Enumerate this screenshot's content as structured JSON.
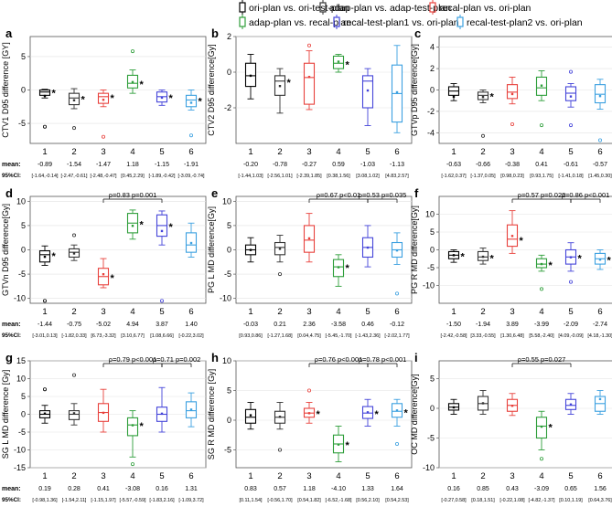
{
  "legend": {
    "placement": "top",
    "items": [
      {
        "label": "ori-plan vs. ori-test-plan",
        "color": "#000000"
      },
      {
        "label": "adap-plan vs. adap-test-plan",
        "color": "#333333"
      },
      {
        "label": "recal-plan vs. ori-plan",
        "color": "#e8413c"
      },
      {
        "label": "adap-plan vs. recal-plan",
        "color": "#2e9e3a"
      },
      {
        "label": "recal-test-plan1 vs. ori-plan",
        "color": "#4444d9"
      },
      {
        "label": "recal-test-plan2 vs. ori-plan",
        "color": "#3ba0e0"
      }
    ]
  },
  "row_labels": {
    "mean": "mean:",
    "ci": "95%CI:"
  },
  "chart_data": [
    {
      "type": "boxplot",
      "panel": "a",
      "ylabel": "CTV1 D95 difference [GY]",
      "ylim": [
        -8,
        8
      ],
      "yticks": [
        -5,
        0,
        5
      ],
      "grid": true,
      "categories": [
        "1",
        "2",
        "3",
        "4",
        "5",
        "6"
      ],
      "means": [
        "-0.89",
        "-1.54",
        "-1.47",
        "1.18",
        "-1.15",
        "-1.91"
      ],
      "ci": [
        "[-1.64,-0.14]",
        "[-2.47,-0.61]",
        "[-2.48,-0.47]",
        "[0.45,2.29]",
        "[-1.89,-0.42]",
        "[-3.09,-0.74]"
      ],
      "boxes": [
        {
          "q1": -0.8,
          "median": -0.3,
          "q3": 0,
          "wlo": -1.2,
          "whi": 0.1,
          "outliers": [
            -5.5
          ],
          "star": true
        },
        {
          "q1": -2.2,
          "median": -1.2,
          "q3": -0.5,
          "wlo": -2.8,
          "whi": 0.2,
          "outliers": [
            -5.7
          ],
          "star": true
        },
        {
          "q1": -2,
          "median": -1,
          "q3": -0.5,
          "wlo": -2.5,
          "whi": 0,
          "outliers": [
            -7
          ],
          "star": true
        },
        {
          "q1": 0.3,
          "median": 1,
          "q3": 2.2,
          "wlo": -0.5,
          "whi": 3,
          "outliers": [
            5.8
          ],
          "star": true
        },
        {
          "q1": -1.8,
          "median": -1,
          "q3": -0.3,
          "wlo": -2.3,
          "whi": 0,
          "outliers": [],
          "star": true
        },
        {
          "q1": -2.5,
          "median": -1.5,
          "q3": -0.8,
          "wlo": -3,
          "whi": 0,
          "outliers": [
            -6.8
          ],
          "star": true
        }
      ],
      "brackets": []
    },
    {
      "type": "boxplot",
      "panel": "b",
      "ylabel": "CTV2 D95 difference[Gy]",
      "ylim": [
        -4,
        2
      ],
      "yticks": [
        -2,
        0,
        2
      ],
      "grid": true,
      "categories": [
        "1",
        "2",
        "3",
        "4",
        "5",
        "6"
      ],
      "means": [
        "-0.20",
        "-0.78",
        "-0.27",
        "0.59",
        "-1.03",
        "-1.13"
      ],
      "ci": [
        "[-1.44,1.03]",
        "[-2.56,1.01]",
        "[-2.39,1.85]",
        "[0.38,1.56]",
        "[3.08,1.02]",
        "[4.83,2.57]"
      ],
      "boxes": [
        {
          "q1": -0.8,
          "median": -0.2,
          "q3": 0.5,
          "wlo": -1.5,
          "whi": 1,
          "outliers": [],
          "star": false
        },
        {
          "q1": -1.3,
          "median": -0.5,
          "q3": -0.2,
          "wlo": -2.3,
          "whi": 0.2,
          "outliers": [],
          "star": true
        },
        {
          "q1": -1.8,
          "median": -0.3,
          "q3": 0.5,
          "wlo": -2.1,
          "whi": 1.2,
          "outliers": [
            1.5
          ],
          "star": false
        },
        {
          "q1": 0.2,
          "median": 0.5,
          "q3": 0.9,
          "wlo": 0,
          "whi": 1,
          "outliers": [],
          "star": true
        },
        {
          "q1": -2,
          "median": -0.5,
          "q3": -0.2,
          "wlo": -3,
          "whi": 0.2,
          "outliers": [],
          "star": false
        },
        {
          "q1": -2.8,
          "median": -1.2,
          "q3": 0.4,
          "wlo": -3.4,
          "whi": 1.5,
          "outliers": [],
          "star": false
        }
      ],
      "brackets": []
    },
    {
      "type": "boxplot",
      "panel": "c",
      "ylabel": "GTVp D95 difference[Gy]",
      "ylim": [
        -5,
        5
      ],
      "yticks": [
        -4,
        -2,
        0,
        2,
        4
      ],
      "grid": true,
      "categories": [
        "1",
        "2",
        "3",
        "4",
        "5",
        "6"
      ],
      "means": [
        "-0.63",
        "-0.66",
        "-0.38",
        "0.41",
        "-0.61",
        "-0.57"
      ],
      "ci": [
        "[-1.62,0.37]",
        "[-1.37,0.05]",
        "[0.98,0.23]",
        "[0.93,1.75]",
        "[-1.41,0.18]",
        "[1.45,0.30]"
      ],
      "boxes": [
        {
          "q1": -0.5,
          "median": -0.1,
          "q3": 0.3,
          "wlo": -1,
          "whi": 0.6,
          "outliers": [],
          "star": false
        },
        {
          "q1": -0.9,
          "median": -0.5,
          "q3": -0.2,
          "wlo": -1.2,
          "whi": 0,
          "outliers": [
            -4.3
          ],
          "star": true
        },
        {
          "q1": -0.8,
          "median": -0.2,
          "q3": 0.5,
          "wlo": -1.3,
          "whi": 1.2,
          "outliers": [
            -3.2
          ],
          "star": false
        },
        {
          "q1": -0.5,
          "median": 0.2,
          "q3": 1.2,
          "wlo": -1,
          "whi": 1.8,
          "outliers": [
            -3.3
          ],
          "star": false
        },
        {
          "q1": -1,
          "median": -0.3,
          "q3": 0.3,
          "wlo": -1.6,
          "whi": 0.6,
          "outliers": [
            1.7,
            -3.3
          ],
          "star": false
        },
        {
          "q1": -1.2,
          "median": -0.4,
          "q3": 0.5,
          "wlo": -1.8,
          "whi": 1,
          "outliers": [
            -4.7
          ],
          "star": false
        }
      ],
      "brackets": []
    },
    {
      "type": "boxplot",
      "panel": "d",
      "ylabel": "GTVn D95 difference[Gy]",
      "ylim": [
        -11,
        11
      ],
      "yticks": [
        -10,
        -5,
        0,
        5,
        10
      ],
      "grid": true,
      "categories": [
        "1",
        "2",
        "3",
        "4",
        "5",
        "6"
      ],
      "means": [
        "-1.44",
        "-0.75",
        "-5.02",
        "4.94",
        "3.87",
        "1.40"
      ],
      "ci": [
        "[-3.01,0.13]",
        "[-1.82,0.33]",
        "[6.73,-3.32]",
        "[3.10,6.77]",
        "[1.08,6.66]",
        "[-0.22,3.02]"
      ],
      "boxes": [
        {
          "q1": -2.5,
          "median": -1,
          "q3": -0.2,
          "wlo": -3.2,
          "whi": 0.8,
          "outliers": [
            -10.5
          ],
          "star": true
        },
        {
          "q1": -1.5,
          "median": -0.5,
          "q3": 0.2,
          "wlo": -2.2,
          "whi": 1,
          "outliers": [
            3
          ],
          "star": false
        },
        {
          "q1": -7.2,
          "median": -5.5,
          "q3": -3.8,
          "wlo": -7.8,
          "whi": -1.8,
          "outliers": [],
          "star": true
        },
        {
          "q1": 3.5,
          "median": 5.5,
          "q3": 7.5,
          "wlo": 2.2,
          "whi": 8.2,
          "outliers": [],
          "star": true
        },
        {
          "q1": 2.8,
          "median": 5,
          "q3": 7.2,
          "wlo": 1,
          "whi": 8,
          "outliers": [
            -10.5
          ],
          "star": true
        },
        {
          "q1": -0.5,
          "median": 1,
          "q3": 3.5,
          "wlo": -1.5,
          "whi": 5.5,
          "outliers": [],
          "star": false
        }
      ],
      "brackets": [
        {
          "from": 3,
          "to": 5,
          "label": "ρ=0.83 p=0.001"
        }
      ]
    },
    {
      "type": "boxplot",
      "panel": "e",
      "ylabel": "PG L MD difference[Gy]",
      "ylim": [
        -11,
        11
      ],
      "yticks": [
        -10,
        -5,
        0,
        5,
        10
      ],
      "grid": true,
      "categories": [
        "1",
        "2",
        "3",
        "4",
        "5",
        "6"
      ],
      "means": [
        "-0.03",
        "0.21",
        "2.36",
        "-3.58",
        "0.46",
        "-0.12"
      ],
      "ci": [
        "[0.93,0.86]",
        "[-1.27,1.68]",
        "[0.04,4.75]",
        "[-5.45,-1.70]",
        "[-1.43,2.36]",
        "[-2.02,1.77]"
      ],
      "boxes": [
        {
          "q1": -1,
          "median": 0,
          "q3": 1,
          "wlo": -2.5,
          "whi": 2.5,
          "outliers": [],
          "star": false
        },
        {
          "q1": -1,
          "median": 0.5,
          "q3": 1.5,
          "wlo": -2.5,
          "whi": 3,
          "outliers": [
            -5
          ],
          "star": false
        },
        {
          "q1": -0.5,
          "median": 2,
          "q3": 5,
          "wlo": -2.5,
          "whi": 7.5,
          "outliers": [],
          "star": false
        },
        {
          "q1": -5.5,
          "median": -3.5,
          "q3": -2,
          "wlo": -7.5,
          "whi": -1,
          "outliers": [],
          "star": true
        },
        {
          "q1": -1.5,
          "median": 0.5,
          "q3": 2.5,
          "wlo": -3.5,
          "whi": 5,
          "outliers": [],
          "star": false
        },
        {
          "q1": -1.5,
          "median": 0,
          "q3": 1.5,
          "wlo": -3,
          "whi": 3.5,
          "outliers": [
            -9
          ],
          "star": false
        }
      ],
      "brackets": [
        {
          "from": 3,
          "to": 5,
          "label": "ρ=0.67 p<0.01"
        },
        {
          "from": 5,
          "to": 6,
          "label": "ρ=0.53 p=0.035"
        }
      ]
    },
    {
      "type": "boxplot",
      "panel": "f",
      "ylabel": "PG R MD difference[Gy]",
      "ylim": [
        -15,
        15
      ],
      "yticks": [
        -10,
        -5,
        0,
        5,
        10
      ],
      "grid": true,
      "categories": [
        "1",
        "2",
        "3",
        "4",
        "5",
        "6"
      ],
      "means": [
        "-1.50",
        "-1.94",
        "3.89",
        "-3.99",
        "-2.09",
        "-2.74"
      ],
      "ci": [
        "[-2.42,-0.58]",
        "[3.33,-0.55]",
        "[1.30,6.48]",
        "[5.58,-2.40]",
        "[4.09,-0.09]",
        "[4.18,-1.30]"
      ],
      "boxes": [
        {
          "q1": -2.5,
          "median": -1.5,
          "q3": -0.5,
          "wlo": -3.5,
          "whi": 0,
          "outliers": [],
          "star": true
        },
        {
          "q1": -3,
          "median": -2,
          "q3": -0.5,
          "wlo": -4,
          "whi": 0.5,
          "outliers": [],
          "star": true
        },
        {
          "q1": 1,
          "median": 3,
          "q3": 7,
          "wlo": -1,
          "whi": 11,
          "outliers": [],
          "star": true
        },
        {
          "q1": -5,
          "median": -4,
          "q3": -2.5,
          "wlo": -6,
          "whi": -1.5,
          "outliers": [
            -11
          ],
          "star": true
        },
        {
          "q1": -4,
          "median": -2,
          "q3": 0,
          "wlo": -6,
          "whi": 2,
          "outliers": [
            -9
          ],
          "star": true
        },
        {
          "q1": -4,
          "median": -2.5,
          "q3": -1,
          "wlo": -5.5,
          "whi": 0,
          "outliers": [],
          "star": true
        }
      ],
      "brackets": [
        {
          "from": 3,
          "to": 5,
          "label": "ρ=0.57 p=0.022"
        },
        {
          "from": 5,
          "to": 6,
          "label": "ρ=0.86 p<0.001"
        }
      ]
    },
    {
      "type": "boxplot",
      "panel": "g",
      "ylabel": "SG L MD difference [Gy]",
      "ylim": [
        -15,
        15
      ],
      "yticks": [
        -15,
        -10,
        -5,
        0,
        5,
        10,
        15
      ],
      "grid": true,
      "categories": [
        "1",
        "2",
        "3",
        "4",
        "5",
        "6"
      ],
      "means": [
        "0.19",
        "0.28",
        "0.41",
        "-3.08",
        "0.16",
        "1.31"
      ],
      "ci": [
        "[-0.98,1.36]",
        "[-1.54,2.11]",
        "[-1.15,1.97]",
        "[-5.57,-0.59]",
        "[-1.83,2.16]",
        "[-1.09,3.72]"
      ],
      "boxes": [
        {
          "q1": -1,
          "median": 0,
          "q3": 1,
          "wlo": -2.5,
          "whi": 2.5,
          "outliers": [
            7
          ],
          "star": false
        },
        {
          "q1": -1.5,
          "median": 0,
          "q3": 1,
          "wlo": -3,
          "whi": 3,
          "outliers": [
            11
          ],
          "star": false
        },
        {
          "q1": -2,
          "median": 0.5,
          "q3": 3,
          "wlo": -5,
          "whi": 7,
          "outliers": [],
          "star": false
        },
        {
          "q1": -6,
          "median": -3,
          "q3": -1,
          "wlo": -12,
          "whi": 1,
          "outliers": [
            -14
          ],
          "star": true
        },
        {
          "q1": -2,
          "median": 0,
          "q3": 2,
          "wlo": -5,
          "whi": 7.5,
          "outliers": [],
          "star": false
        },
        {
          "q1": -1,
          "median": 1,
          "q3": 3.5,
          "wlo": -3.5,
          "whi": 6,
          "outliers": [],
          "star": false
        }
      ],
      "brackets": [
        {
          "from": 3,
          "to": 5,
          "label": "ρ=0.79 p<0.001"
        },
        {
          "from": 5,
          "to": 6,
          "label": "ρ=0.71 p=0.002"
        }
      ]
    },
    {
      "type": "boxplot",
      "panel": "h",
      "ylabel": "SG R MD difference [Gy]",
      "ylim": [
        -8,
        10
      ],
      "yticks": [
        -5,
        0,
        5,
        10
      ],
      "grid": true,
      "categories": [
        "1",
        "2",
        "3",
        "4",
        "5",
        "6"
      ],
      "means": [
        "0.83",
        "0.57",
        "1.18",
        "-4.10",
        "1.33",
        "1.64"
      ],
      "ci": [
        "[0.11,1.54]",
        "[-0.56,1.70]",
        "[0.54,1.82]",
        "[-6.52,-1.68]",
        "[0.56,2.10]",
        "[0.54,2.53]"
      ],
      "boxes": [
        {
          "q1": -0.5,
          "median": 0.5,
          "q3": 1.8,
          "wlo": -1.5,
          "whi": 3,
          "outliers": [],
          "star": false
        },
        {
          "q1": -0.5,
          "median": 0.5,
          "q3": 1.5,
          "wlo": -1.5,
          "whi": 3,
          "outliers": [
            -5
          ],
          "star": false
        },
        {
          "q1": 0.5,
          "median": 1.2,
          "q3": 2,
          "wlo": -0.5,
          "whi": 3,
          "outliers": [
            5
          ],
          "star": true
        },
        {
          "q1": -5.5,
          "median": -4,
          "q3": -2.5,
          "wlo": -7,
          "whi": -1,
          "outliers": [],
          "star": true
        },
        {
          "q1": 0.3,
          "median": 1.2,
          "q3": 2.3,
          "wlo": -1,
          "whi": 3.5,
          "outliers": [],
          "star": true
        },
        {
          "q1": 0.5,
          "median": 1.5,
          "q3": 2.8,
          "wlo": -1,
          "whi": 3.5,
          "outliers": [
            -4
          ],
          "star": true
        }
      ],
      "brackets": [
        {
          "from": 3,
          "to": 5,
          "label": "ρ=0.76 p<0.001"
        },
        {
          "from": 5,
          "to": 6,
          "label": "ρ=0.78 p<0.001"
        }
      ]
    },
    {
      "type": "boxplot",
      "panel": "i",
      "ylabel": "OC MD difference[Gy]",
      "ylim": [
        -10,
        8
      ],
      "yticks": [
        -10,
        -5,
        0,
        5
      ],
      "grid": true,
      "categories": [
        "1",
        "2",
        "3",
        "4",
        "5",
        "6"
      ],
      "means": [
        "0.16",
        "0.85",
        "0.43",
        "-3.09",
        "0.65",
        "1.56"
      ],
      "ci": [
        "[-0.27,0.58]",
        "[0.18,1.51]",
        "[-0.22,1.08]",
        "[-4.82,-1.37]",
        "[0.10,1.19]",
        "[0.64,3.76]"
      ],
      "boxes": [
        {
          "q1": -0.3,
          "median": 0.2,
          "q3": 0.8,
          "wlo": -1,
          "whi": 1.5,
          "outliers": [],
          "star": false
        },
        {
          "q1": -0.3,
          "median": 0.8,
          "q3": 2,
          "wlo": -1,
          "whi": 3,
          "outliers": [],
          "star": false
        },
        {
          "q1": -0.5,
          "median": 0.5,
          "q3": 1.5,
          "wlo": -1.2,
          "whi": 2.5,
          "outliers": [],
          "star": false
        },
        {
          "q1": -5,
          "median": -3,
          "q3": -1.5,
          "wlo": -7,
          "whi": -0.5,
          "outliers": [
            -8.5
          ],
          "star": true
        },
        {
          "q1": -0.2,
          "median": 0.5,
          "q3": 1.5,
          "wlo": -1,
          "whi": 2.5,
          "outliers": [],
          "star": false
        },
        {
          "q1": -0.5,
          "median": 0.8,
          "q3": 2,
          "wlo": -1,
          "whi": 3,
          "outliers": [],
          "star": false
        }
      ],
      "brackets": [
        {
          "from": 3,
          "to": 5,
          "label": "ρ=0.55 p=0.027"
        }
      ]
    }
  ]
}
